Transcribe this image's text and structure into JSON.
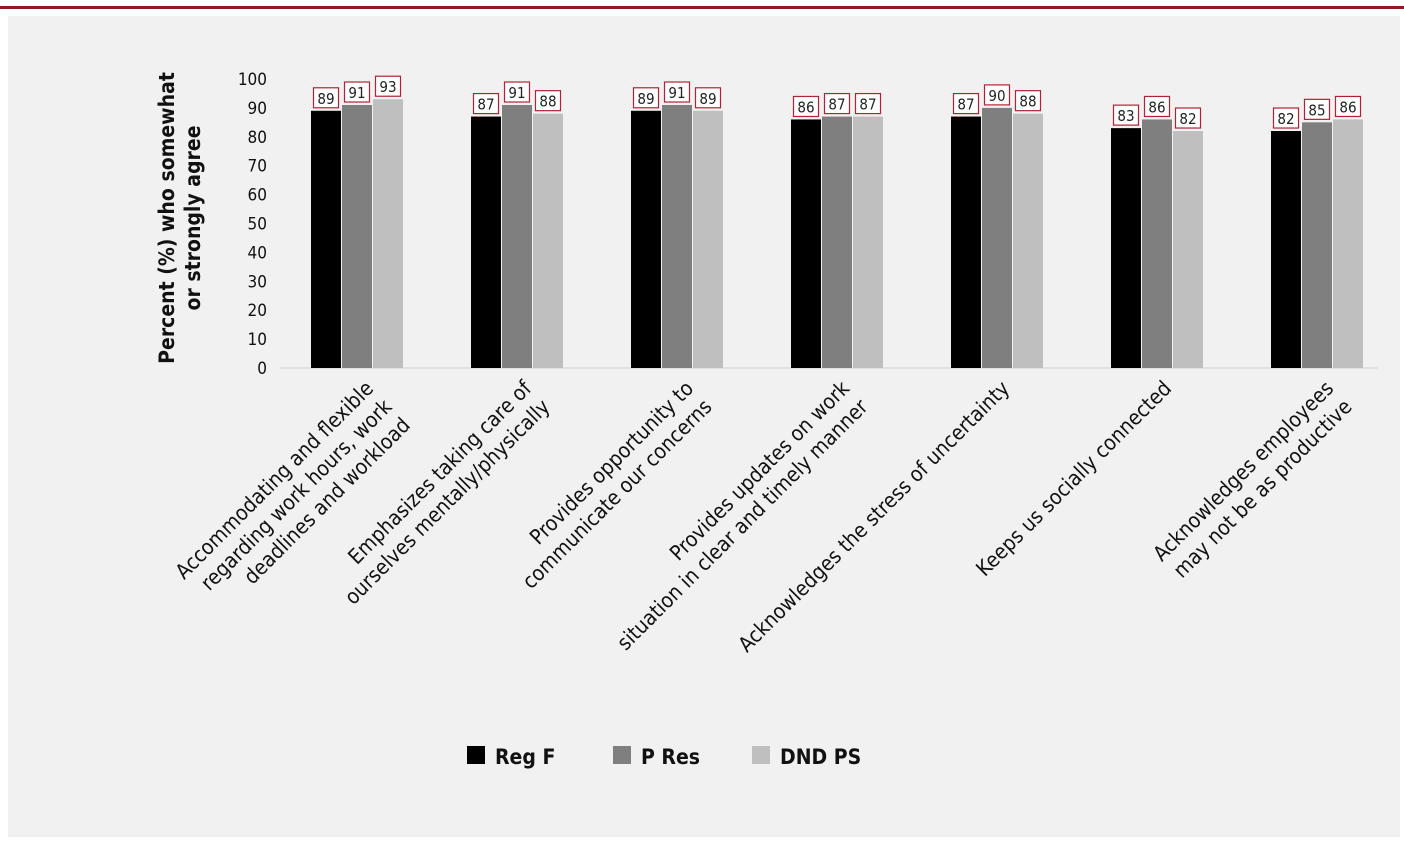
{
  "chart_data": {
    "type": "bar",
    "ylabel": [
      "Percent (%) who somewhat",
      "or strongly agree"
    ],
    "xlabel": "",
    "ylim": [
      0,
      100
    ],
    "yticks": [
      0,
      10,
      20,
      30,
      40,
      50,
      60,
      70,
      80,
      90,
      100
    ],
    "grid": false,
    "legend_position": "bottom",
    "categories": [
      [
        "Accommodating and flexible",
        "regarding work hours, work",
        "deadlines and workload"
      ],
      [
        "Emphasizes taking care of",
        "ourselves mentally/physically"
      ],
      [
        "Provides opportunity to",
        "communicate our concerns"
      ],
      [
        "Provides updates on work",
        "situation in clear and timely manner"
      ],
      [
        "Acknowledges the stress of uncertainty"
      ],
      [
        "Keeps us socially connected"
      ],
      [
        "Acknowledges employees",
        "may not be as productive"
      ]
    ],
    "series": [
      {
        "name": "Reg F",
        "color": "#000000",
        "values": [
          89,
          87,
          89,
          86,
          87,
          83,
          82
        ]
      },
      {
        "name": "P Res",
        "color": "#7f7f7f",
        "values": [
          91,
          91,
          91,
          87,
          90,
          86,
          85
        ]
      },
      {
        "name": "DND PS",
        "color": "#bfbfbf",
        "values": [
          93,
          88,
          89,
          87,
          88,
          82,
          86
        ]
      }
    ],
    "data_label_border_color": "#b22234"
  }
}
